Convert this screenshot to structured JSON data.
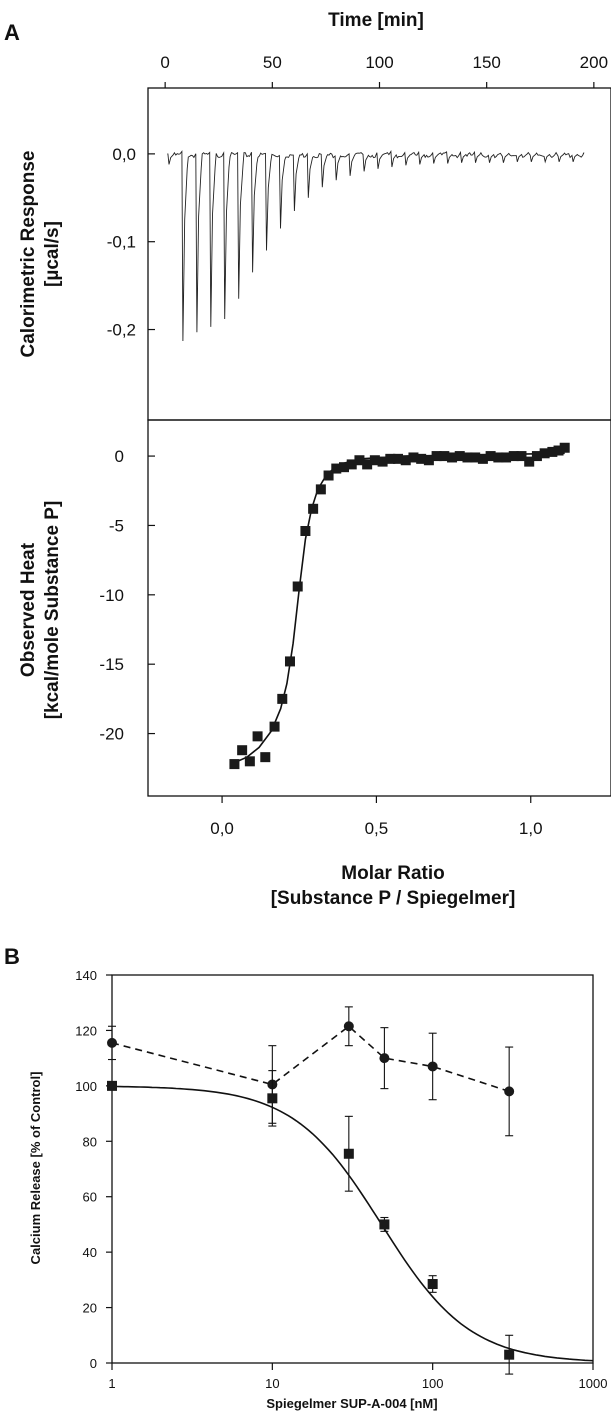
{
  "panel_labels": {
    "a": "A",
    "b": "B"
  },
  "chart_data": [
    {
      "type": "line",
      "panel": "A-top",
      "xlabel": "Time [min]",
      "ylabel_line1": "Calorimetric Response",
      "ylabel_line2": "[µcal/s]",
      "x_ticks": [
        "0",
        "50",
        "100",
        "150",
        "200"
      ],
      "x_tick_values": [
        0,
        50,
        100,
        150,
        200
      ],
      "y_ticks": [
        "0,0",
        "-0,1",
        "-0,2"
      ],
      "y_tick_values": [
        0,
        -0.1,
        -0.2
      ],
      "xlim": [
        -8,
        208
      ],
      "ylim": [
        -0.303,
        0.075
      ],
      "injection_start_min": 1,
      "injection_interval_min": 6.5,
      "trace_end_min": 195,
      "peak_values": [
        -0.012,
        -0.213,
        -0.203,
        -0.197,
        -0.188,
        -0.165,
        -0.135,
        -0.11,
        -0.085,
        -0.065,
        -0.05,
        -0.038,
        -0.03,
        -0.025,
        -0.02,
        -0.017,
        -0.015,
        -0.013,
        -0.012,
        -0.011,
        -0.011,
        -0.01,
        -0.01,
        -0.01,
        -0.01,
        -0.009,
        -0.009,
        -0.009,
        -0.009,
        -0.009
      ]
    },
    {
      "type": "scatter",
      "panel": "A-bottom",
      "xlabel_line1": "Molar Ratio",
      "xlabel_line2": "[Substance P / Spiegelmer]",
      "ylabel_line1": "Observed Heat",
      "ylabel_line2": "[kcal/mole Substance P]",
      "x_ticks": [
        "0,0",
        "0,5",
        "1,0"
      ],
      "x_tick_values": [
        0,
        0.5,
        1.0
      ],
      "y_ticks": [
        "0",
        "-5",
        "-10",
        "-15",
        "-20"
      ],
      "y_tick_values": [
        0,
        -5,
        -10,
        -15,
        -20
      ],
      "xlim": [
        -0.24,
        1.26
      ],
      "ylim": [
        -24.5,
        2.6
      ],
      "series": [
        {
          "points": [
            [
              0.04,
              -22.2
            ],
            [
              0.065,
              -21.2
            ],
            [
              0.09,
              -22.0
            ],
            [
              0.115,
              -20.2
            ],
            [
              0.14,
              -21.7
            ],
            [
              0.17,
              -19.5
            ],
            [
              0.195,
              -17.5
            ],
            [
              0.22,
              -14.8
            ],
            [
              0.245,
              -9.4
            ],
            [
              0.27,
              -5.4
            ],
            [
              0.295,
              -3.8
            ],
            [
              0.32,
              -2.4
            ],
            [
              0.345,
              -1.4
            ],
            [
              0.37,
              -0.9
            ],
            [
              0.395,
              -0.8
            ],
            [
              0.42,
              -0.6
            ],
            [
              0.445,
              -0.3
            ],
            [
              0.47,
              -0.6
            ],
            [
              0.495,
              -0.3
            ],
            [
              0.52,
              -0.4
            ],
            [
              0.545,
              -0.2
            ],
            [
              0.57,
              -0.2
            ],
            [
              0.595,
              -0.3
            ],
            [
              0.62,
              -0.1
            ],
            [
              0.645,
              -0.2
            ],
            [
              0.67,
              -0.3
            ],
            [
              0.695,
              0.0
            ],
            [
              0.72,
              0.0
            ],
            [
              0.745,
              -0.1
            ],
            [
              0.77,
              0.0
            ],
            [
              0.795,
              -0.1
            ],
            [
              0.82,
              -0.1
            ],
            [
              0.845,
              -0.2
            ],
            [
              0.87,
              0.0
            ],
            [
              0.895,
              -0.1
            ],
            [
              0.92,
              -0.1
            ],
            [
              0.945,
              0.0
            ],
            [
              0.97,
              0.0
            ],
            [
              0.995,
              -0.4
            ],
            [
              1.02,
              0.0
            ],
            [
              1.045,
              0.2
            ],
            [
              1.07,
              0.3
            ],
            [
              1.09,
              0.4
            ],
            [
              1.11,
              0.6
            ]
          ],
          "fit": [
            [
              0.04,
              -22.1
            ],
            [
              0.08,
              -21.7
            ],
            [
              0.12,
              -21.0
            ],
            [
              0.16,
              -19.8
            ],
            [
              0.19,
              -18.2
            ],
            [
              0.21,
              -16.4
            ],
            [
              0.23,
              -13.5
            ],
            [
              0.25,
              -9.6
            ],
            [
              0.27,
              -6.0
            ],
            [
              0.29,
              -3.8
            ],
            [
              0.31,
              -2.4
            ],
            [
              0.34,
              -1.3
            ],
            [
              0.38,
              -0.6
            ],
            [
              0.45,
              -0.2
            ],
            [
              0.6,
              0.0
            ],
            [
              1.11,
              0.2
            ]
          ]
        }
      ]
    },
    {
      "type": "line",
      "panel": "B",
      "scale": "log-x",
      "xlabel": "Spiegelmer SUP-A-004 [nM]",
      "ylabel": "Calcium Release [% of Control]",
      "x_ticks": [
        "1",
        "10",
        "100",
        "1000"
      ],
      "x_tick_values": [
        1,
        10,
        100,
        1000
      ],
      "y_ticks": [
        "0",
        "20",
        "40",
        "60",
        "80",
        "100",
        "120",
        "140"
      ],
      "y_tick_values": [
        0,
        20,
        40,
        60,
        80,
        100,
        120,
        140
      ],
      "xlim": [
        1,
        1000
      ],
      "ylim": [
        0,
        140
      ],
      "series": [
        {
          "marker": "circle",
          "line": "dashed",
          "x": [
            1,
            10,
            30,
            50,
            100,
            300
          ],
          "y": [
            115.5,
            100.5,
            121.5,
            110,
            107,
            98
          ],
          "err": [
            6,
            14,
            7,
            11,
            12,
            16
          ]
        },
        {
          "marker": "square",
          "line": "fit",
          "x": [
            1,
            10,
            30,
            50,
            100,
            300
          ],
          "y": [
            100,
            95.5,
            75.5,
            50,
            28.5,
            3
          ],
          "err": [
            1.5,
            10,
            13.5,
            2.5,
            3,
            7
          ],
          "fit": {
            "top": 100,
            "ic50": 48,
            "hill": 1.58
          }
        }
      ]
    }
  ]
}
